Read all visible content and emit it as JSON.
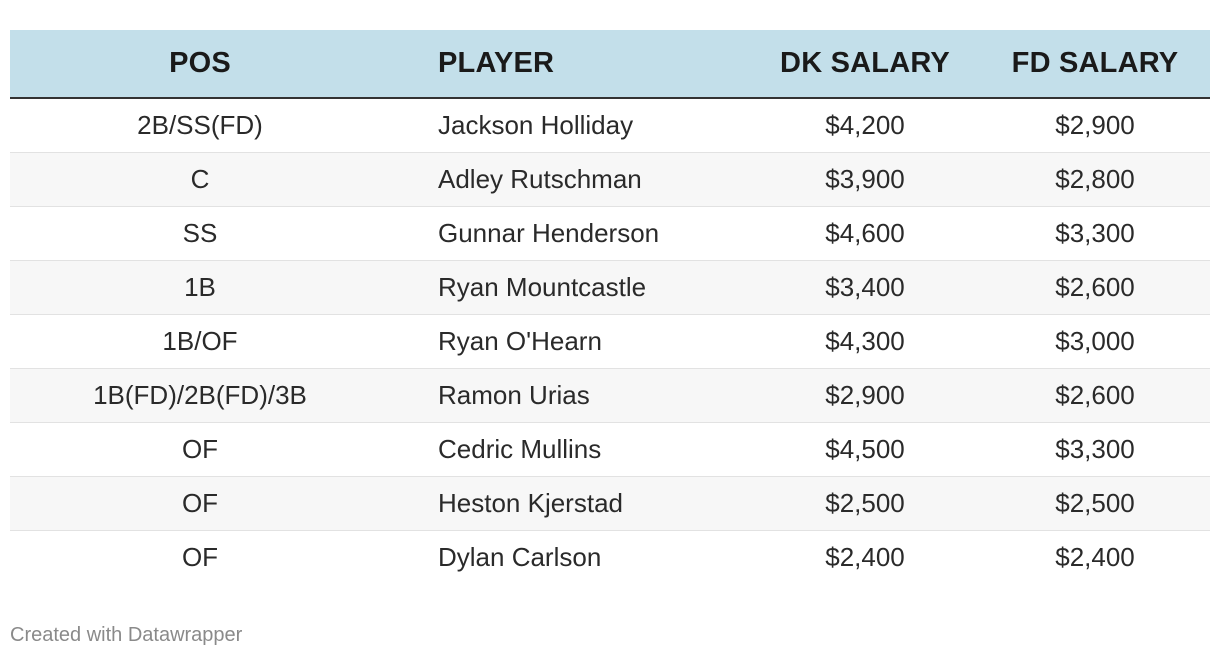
{
  "table": {
    "headers": {
      "pos": "POS",
      "player": "PLAYER",
      "dk_salary": "DK SALARY",
      "fd_salary": "FD SALARY"
    },
    "rows": [
      {
        "pos": "2B/SS(FD)",
        "player": "Jackson Holliday",
        "dk": "$4,200",
        "fd": "$2,900"
      },
      {
        "pos": "C",
        "player": "Adley Rutschman",
        "dk": "$3,900",
        "fd": "$2,800"
      },
      {
        "pos": "SS",
        "player": "Gunnar Henderson",
        "dk": "$4,600",
        "fd": "$3,300"
      },
      {
        "pos": "1B",
        "player": "Ryan Mountcastle",
        "dk": "$3,400",
        "fd": "$2,600"
      },
      {
        "pos": "1B/OF",
        "player": "Ryan O'Hearn",
        "dk": "$4,300",
        "fd": "$3,000"
      },
      {
        "pos": "1B(FD)/2B(FD)/3B",
        "player": "Ramon Urias",
        "dk": "$2,900",
        "fd": "$2,600"
      },
      {
        "pos": "OF",
        "player": "Cedric Mullins",
        "dk": "$4,500",
        "fd": "$3,300"
      },
      {
        "pos": "OF",
        "player": "Heston Kjerstad",
        "dk": "$2,500",
        "fd": "$2,500"
      },
      {
        "pos": "OF",
        "player": "Dylan Carlson",
        "dk": "$2,400",
        "fd": "$2,400"
      }
    ]
  },
  "footer": {
    "credit": "Created with Datawrapper"
  },
  "colors": {
    "header_background": "#c3dfea",
    "stripe_background": "#f7f7f7",
    "footer_text": "#8a8a8a"
  }
}
